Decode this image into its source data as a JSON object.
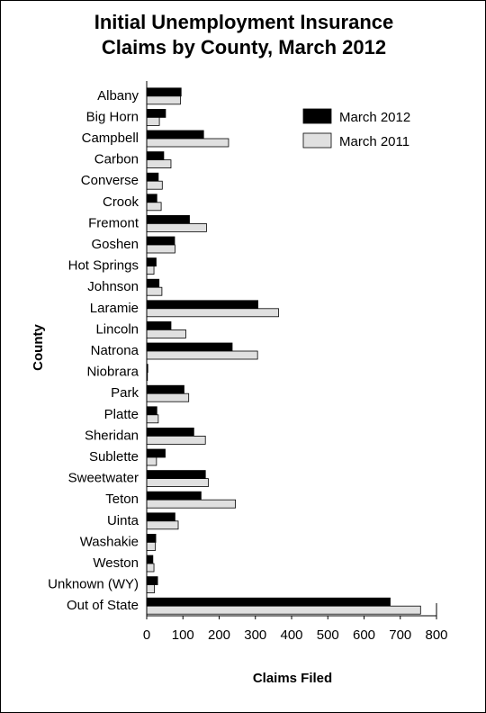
{
  "chart_data": {
    "type": "bar",
    "orientation": "horizontal",
    "title_lines": [
      "Initial Unemployment Insurance",
      "Claims by County, March 2012"
    ],
    "xlabel": "Claims Filed",
    "ylabel": "County",
    "xlim": [
      0,
      800
    ],
    "xticks": [
      0,
      100,
      200,
      300,
      400,
      500,
      600,
      700,
      800
    ],
    "grid": false,
    "legend_position": "top-right",
    "categories": [
      "Albany",
      "Big Horn",
      "Campbell",
      "Carbon",
      "Converse",
      "Crook",
      "Fremont",
      "Goshen",
      "Hot Springs",
      "Johnson",
      "Laramie",
      "Lincoln",
      "Natrona",
      "Niobrara",
      "Park",
      "Platte",
      "Sheridan",
      "Sublette",
      "Sweetwater",
      "Teton",
      "Uinta",
      "Washakie",
      "Weston",
      "Unknown (WY)",
      "Out of State"
    ],
    "series": [
      {
        "name": "March 2012",
        "color": "#000000",
        "values": [
          95,
          52,
          157,
          47,
          32,
          28,
          118,
          77,
          26,
          34,
          307,
          67,
          236,
          3,
          103,
          28,
          130,
          51,
          162,
          150,
          78,
          25,
          17,
          30,
          672
        ]
      },
      {
        "name": "March 2011",
        "color": "#e0e0e0",
        "values": [
          93,
          35,
          226,
          67,
          43,
          40,
          165,
          78,
          20,
          42,
          364,
          108,
          306,
          2,
          116,
          32,
          162,
          27,
          170,
          245,
          87,
          24,
          20,
          21,
          756
        ]
      }
    ]
  }
}
